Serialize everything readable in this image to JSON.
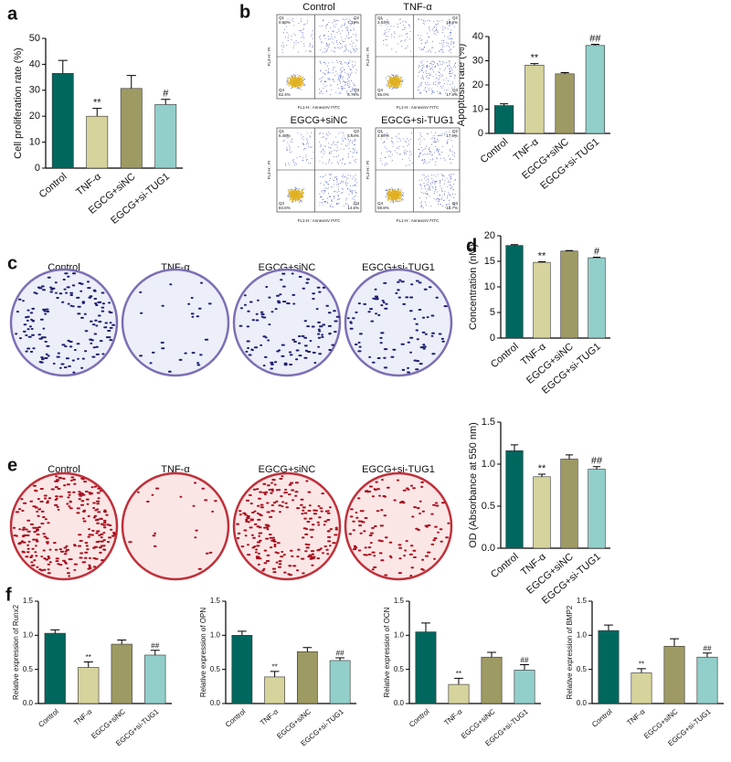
{
  "chart_data": [
    {
      "type": "bar",
      "panel": "a",
      "ylabel": "Cell proliferation rate (%)",
      "categories": [
        "Control",
        "TNF-α",
        "EGCG+siNC",
        "EGCG+si-TUG1"
      ],
      "values": [
        36.5,
        20,
        30.7,
        24.5
      ],
      "errors": [
        5,
        3,
        5,
        2
      ],
      "annotations": [
        null,
        "**",
        null,
        "#"
      ],
      "colors": [
        "#00675e",
        "#d6d39c",
        "#9e9a63",
        "#92cfcb"
      ],
      "ylim": [
        0,
        50
      ],
      "yticks": [
        0,
        10,
        20,
        30,
        40,
        50
      ]
    },
    {
      "type": "bar",
      "ylabel": "Apoptosis rate (%)",
      "categories": [
        "Control",
        "TNF-α",
        "EGCG+siNC",
        "EGCG+si-TUG1"
      ],
      "values": [
        11.5,
        28.2,
        24.6,
        36.3
      ],
      "errors": [
        0.7,
        0.6,
        0.5,
        0.5
      ],
      "annotations": [
        null,
        "**",
        null,
        "##"
      ],
      "colors": [
        "#00675e",
        "#d6d39c",
        "#9e9a63",
        "#92cfcb"
      ],
      "ylim": [
        0,
        40
      ],
      "yticks": [
        0,
        10,
        20,
        30,
        40
      ]
    },
    {
      "type": "bar",
      "panel": "d",
      "ylabel": "Concentration (nM)",
      "categories": [
        "Control",
        "TNF-α",
        "EGCG+siNC",
        "EGCG+si-TUG1"
      ],
      "values": [
        18.1,
        14.8,
        17.0,
        15.7
      ],
      "errors": [
        0.15,
        0.1,
        0.1,
        0.1
      ],
      "annotations": [
        null,
        "**",
        null,
        "#"
      ],
      "colors": [
        "#00675e",
        "#d6d39c",
        "#9e9a63",
        "#92cfcb"
      ],
      "ylim": [
        0,
        20
      ],
      "yticks": [
        0,
        5,
        10,
        15,
        20
      ]
    },
    {
      "type": "bar",
      "ylabel": "OD (Absorbance at 550 nm)",
      "categories": [
        "Control",
        "TNF-α",
        "EGCG+siNC",
        "EGCG+si-TUG1"
      ],
      "values": [
        1.16,
        0.85,
        1.06,
        0.94
      ],
      "errors": [
        0.07,
        0.03,
        0.05,
        0.03
      ],
      "annotations": [
        null,
        "**",
        null,
        "##"
      ],
      "colors": [
        "#00675e",
        "#d6d39c",
        "#9e9a63",
        "#92cfcb"
      ],
      "ylim": [
        0,
        1.5
      ],
      "yticks": [
        {
          "value": 0,
          "label": "0.0"
        },
        0.5,
        {
          "value": 1,
          "label": "1.0"
        },
        1.5
      ]
    },
    {
      "type": "bar",
      "panel": "f",
      "ylabel": "Relative expression of Runx2",
      "categories": [
        "Control",
        "TNF-α",
        "EGCG+siNC",
        "EGCG+si-TUG1"
      ],
      "values": [
        1.03,
        0.53,
        0.87,
        0.71
      ],
      "errors": [
        0.05,
        0.08,
        0.06,
        0.07
      ],
      "annotations": [
        null,
        "**",
        null,
        "##"
      ],
      "colors": [
        "#00675e",
        "#d6d39c",
        "#9e9a63",
        "#92cfcb"
      ],
      "ylim": [
        0,
        1.5
      ],
      "yticks": [
        {
          "value": 0,
          "label": "0.0"
        },
        0.5,
        {
          "value": 1,
          "label": "1.0"
        },
        1.5
      ]
    },
    {
      "type": "bar",
      "ylabel": "Relative expression of OPN",
      "categories": [
        "Control",
        "TNF-α",
        "EGCG+siNC",
        "EGCG+si-TUG1"
      ],
      "values": [
        1.0,
        0.39,
        0.76,
        0.63
      ],
      "errors": [
        0.06,
        0.08,
        0.06,
        0.04
      ],
      "annotations": [
        null,
        "**",
        null,
        "##"
      ],
      "colors": [
        "#00675e",
        "#d6d39c",
        "#9e9a63",
        "#92cfcb"
      ],
      "ylim": [
        0,
        1.5
      ],
      "yticks": [
        {
          "value": 0,
          "label": "0.0"
        },
        0.5,
        {
          "value": 1,
          "label": "1.0"
        },
        1.5
      ]
    },
    {
      "type": "bar",
      "ylabel": "Relative expression of OCN",
      "categories": [
        "Control",
        "TNF-α",
        "EGCG+siNC",
        "EGCG+si-TUG1"
      ],
      "values": [
        1.05,
        0.28,
        0.68,
        0.49
      ],
      "errors": [
        0.13,
        0.09,
        0.07,
        0.08
      ],
      "annotations": [
        null,
        "**",
        null,
        "##"
      ],
      "colors": [
        "#00675e",
        "#d6d39c",
        "#9e9a63",
        "#92cfcb"
      ],
      "ylim": [
        0,
        1.5
      ],
      "yticks": [
        {
          "value": 0,
          "label": "0.0"
        },
        0.5,
        {
          "value": 1,
          "label": "1.0"
        },
        1.5
      ]
    },
    {
      "type": "bar",
      "ylabel": "Relative expression of BMP2",
      "categories": [
        "Control",
        "TNF-α",
        "EGCG+siNC",
        "EGCG+si-TUG1"
      ],
      "values": [
        1.07,
        0.45,
        0.84,
        0.68
      ],
      "errors": [
        0.08,
        0.06,
        0.11,
        0.06
      ],
      "annotations": [
        null,
        "**",
        null,
        "##"
      ],
      "colors": [
        "#00675e",
        "#d6d39c",
        "#9e9a63",
        "#92cfcb"
      ],
      "ylim": [
        0,
        1.5
      ],
      "yticks": [
        {
          "value": 0,
          "label": "0.0"
        },
        0.5,
        {
          "value": 1,
          "label": "1.0"
        },
        1.5
      ]
    }
  ],
  "flow_cytometry": {
    "panel": "b",
    "x_label": "FL1-H:: AnnexinV FITC",
    "y_label": "FL3-H:: PI",
    "plots": [
      {
        "title": "Control",
        "q1": "0.58%",
        "q2": "7.19%",
        "q3": "4.76%",
        "q4": "82.4%"
      },
      {
        "title": "TNF-α",
        "q1": "3.03%",
        "q2": "10.2%",
        "q3": "17.6%",
        "q4": "55.0%"
      },
      {
        "title": "EGCG+siNC",
        "q1": "6.43%",
        "q2": "5.64%",
        "q3": "14.5%",
        "q4": "84.6%"
      },
      {
        "title": "EGCG+si-TUG1",
        "q1": "4.50%",
        "q2": "17.6%",
        "q3": "18.7%",
        "q4": "59.8%"
      }
    ],
    "quadrant_names": [
      "Q1",
      "Q2",
      "Q3",
      "Q4"
    ]
  },
  "colony_plates": {
    "panel": "c",
    "labels": [
      "Control",
      "TNF-α",
      "EGCG+siNC",
      "EGCG+si-TUG1"
    ]
  },
  "stained_plates": {
    "panel": "e",
    "labels": [
      "Control",
      "TNF-α",
      "EGCG+siNC",
      "EGCG+si-TUG1"
    ]
  }
}
